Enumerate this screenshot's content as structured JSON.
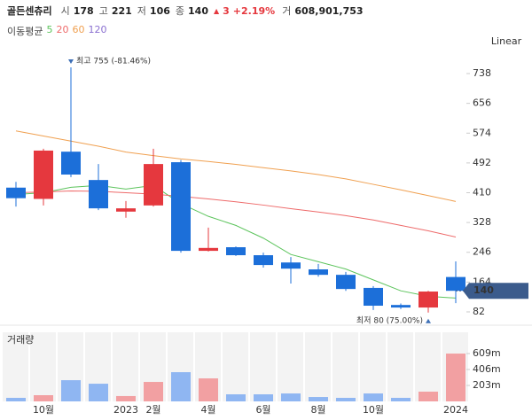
{
  "header": {
    "name": "골든센츄리",
    "fields": [
      {
        "label": "시",
        "value": "178"
      },
      {
        "label": "고",
        "value": "221"
      },
      {
        "label": "저",
        "value": "106"
      },
      {
        "label": "종",
        "value": "140"
      }
    ],
    "change": "3",
    "change_pct": "+2.19%",
    "volume_label": "거",
    "volume": "608,901,753"
  },
  "chart_data": {
    "type": "candlestick",
    "scale_label": "Linear",
    "categories": [
      null,
      "10월",
      null,
      null,
      "2023",
      "2월",
      null,
      "4월",
      null,
      "6월",
      null,
      "8월",
      null,
      "10월",
      null,
      null,
      "2024"
    ],
    "open": [
      424,
      393,
      523,
      445,
      358,
      375,
      494,
      250,
      260,
      238,
      218,
      199,
      184,
      148,
      101,
      94,
      178
    ],
    "high": [
      440,
      531,
      755,
      489,
      387,
      531,
      500,
      314,
      262,
      245,
      233,
      214,
      192,
      153,
      105,
      140,
      221
    ],
    "low": [
      372,
      375,
      453,
      362,
      341,
      372,
      245,
      248,
      236,
      204,
      160,
      179,
      140,
      87,
      90,
      80,
      106
    ],
    "close": [
      395,
      526,
      460,
      367,
      367,
      489,
      250,
      258,
      238,
      211,
      201,
      184,
      145,
      99,
      94,
      138,
      140
    ],
    "up_color": "#e5383e",
    "down_color": "#1c6fd9",
    "ylim": [
      50,
      800
    ],
    "yticks": [
      82,
      164,
      246,
      328,
      410,
      492,
      574,
      656,
      738
    ],
    "ma_title": "이동평균",
    "moving_averages": [
      {
        "name": "5",
        "color": "#5cc45c",
        "values": [
          405,
          410,
          425,
          430,
          420,
          430,
          380,
          345,
          320,
          285,
          240,
          220,
          200,
          170,
          140,
          125,
          120
        ]
      },
      {
        "name": "20",
        "color": "#ee6a6a",
        "values": [
          410,
          412,
          415,
          414,
          410,
          406,
          400,
          393,
          385,
          376,
          366,
          357,
          347,
          335,
          320,
          305,
          288
        ]
      },
      {
        "name": "60",
        "color": "#f0a050",
        "values": [
          580,
          566,
          552,
          538,
          522,
          512,
          503,
          496,
          488,
          479,
          470,
          460,
          448,
          433,
          418,
          402,
          386
        ]
      },
      {
        "name": "120",
        "color": "#8a6fd0",
        "values": [
          null,
          null,
          null,
          null,
          null,
          null,
          null,
          null,
          null,
          null,
          null,
          null,
          null,
          null,
          null,
          null,
          null
        ]
      }
    ],
    "last_price": 140,
    "max_label": "최고 755 (-81.46%)",
    "min_label": "최저 80 (75.00%)",
    "volume": {
      "title": "거래량",
      "values": [
        45,
        79,
        270,
        225,
        68,
        248,
        372,
        293,
        90,
        90,
        101,
        56,
        45,
        101,
        45,
        124,
        608.9
      ],
      "colors": [
        "#8fb6f2",
        "#f2a0a2",
        "#8fb6f2",
        "#8fb6f2",
        "#f2a0a2",
        "#f2a0a2",
        "#8fb6f2",
        "#f2a0a2",
        "#8fb6f2",
        "#8fb6f2",
        "#8fb6f2",
        "#8fb6f2",
        "#8fb6f2",
        "#8fb6f2",
        "#8fb6f2",
        "#f2a0a2",
        "#f2a0a2"
      ],
      "ylim": [
        0,
        880
      ],
      "yticks": [
        {
          "value": 203,
          "label": "203m"
        },
        {
          "value": 406,
          "label": "406m"
        },
        {
          "value": 609,
          "label": "609m"
        }
      ]
    }
  }
}
